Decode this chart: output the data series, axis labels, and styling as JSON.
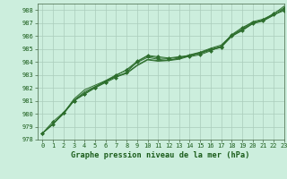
{
  "title": "Graphe pression niveau de la mer (hPa)",
  "xlim": [
    -0.5,
    23
  ],
  "ylim": [
    978,
    988.5
  ],
  "yticks": [
    978,
    979,
    980,
    981,
    982,
    983,
    984,
    985,
    986,
    987,
    988
  ],
  "xticks": [
    0,
    1,
    2,
    3,
    4,
    5,
    6,
    7,
    8,
    9,
    10,
    11,
    12,
    13,
    14,
    15,
    16,
    17,
    18,
    19,
    20,
    21,
    22,
    23
  ],
  "bg_color": "#cceedd",
  "grid_color": "#aaccbb",
  "line_color": "#2d6e2d",
  "series": [
    [
      978.5,
      979.4,
      980.1,
      981.0,
      981.5,
      982.0,
      982.4,
      982.8,
      983.2,
      984.0,
      984.45,
      984.3,
      984.25,
      984.35,
      984.4,
      984.55,
      984.85,
      985.2,
      986.1,
      986.65,
      987.05,
      987.2,
      987.75,
      988.15
    ],
    [
      978.5,
      979.25,
      980.0,
      981.05,
      981.7,
      982.1,
      982.5,
      982.85,
      983.1,
      983.7,
      984.15,
      984.05,
      984.1,
      984.2,
      984.45,
      984.65,
      984.9,
      985.15,
      985.95,
      986.45,
      986.95,
      987.15,
      987.6,
      988.05
    ],
    [
      978.5,
      979.2,
      980.05,
      981.15,
      981.85,
      982.2,
      982.55,
      982.9,
      983.15,
      983.75,
      984.2,
      984.1,
      984.15,
      984.25,
      984.55,
      984.75,
      985.05,
      985.3,
      986.05,
      986.55,
      987.1,
      987.3,
      987.7,
      988.3
    ],
    [
      978.5,
      979.2,
      980.05,
      981.0,
      981.55,
      982.0,
      982.45,
      982.95,
      983.4,
      984.05,
      984.5,
      984.4,
      984.3,
      984.4,
      984.5,
      984.7,
      984.95,
      985.1,
      986.0,
      986.4,
      986.95,
      987.25,
      987.65,
      987.95
    ],
    [
      978.5,
      979.2,
      980.0,
      981.0,
      981.6,
      982.05,
      982.55,
      983.0,
      983.35,
      983.95,
      984.35,
      984.2,
      984.1,
      984.3,
      984.5,
      984.7,
      985.0,
      985.2,
      986.05,
      986.5,
      987.0,
      987.2,
      987.6,
      988.1
    ]
  ],
  "marker_series": [
    0,
    3
  ],
  "tick_fontsize": 5.0,
  "title_fontsize": 6.2,
  "fig_width": 3.2,
  "fig_height": 2.0,
  "dpi": 100
}
